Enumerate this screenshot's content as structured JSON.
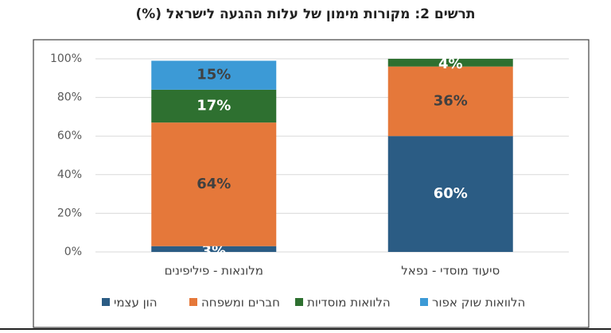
{
  "chart_data": {
    "type": "stacked_bar",
    "title": "תרשים 2: מקורות מימון של עלות ההגעה לישראל (%)",
    "categories": [
      "מלונאות - פיליפינים",
      "סיעוד מוסדי - נפאל"
    ],
    "series": [
      {
        "name": "הון עצמי",
        "color": "#2b5c84",
        "label_color": "#ffffff",
        "values": [
          3,
          60
        ],
        "value_labels": [
          "3%",
          "60%"
        ]
      },
      {
        "name": "חברים ומשפחה",
        "color": "#e5783a",
        "label_color": "#404040",
        "values": [
          64,
          36
        ],
        "value_labels": [
          "64%",
          "36%"
        ]
      },
      {
        "name": "הלוואות מוסדיות",
        "color": "#2e7030",
        "label_color": "#ffffff",
        "values": [
          17,
          4
        ],
        "value_labels": [
          "17%",
          "4%"
        ]
      },
      {
        "name": "הלוואות שוק אפור",
        "color": "#3c9ad6",
        "label_color": "#404040",
        "values": [
          15,
          null
        ],
        "value_labels": [
          "15%",
          null
        ]
      }
    ],
    "ylim": [
      0,
      100
    ],
    "yticks": [
      {
        "value": 0,
        "label": "0%"
      },
      {
        "value": 20,
        "label": "20%"
      },
      {
        "value": 40,
        "label": "40%"
      },
      {
        "value": 60,
        "label": "60%"
      },
      {
        "value": 80,
        "label": "80%"
      },
      {
        "value": 100,
        "label": "100%"
      }
    ],
    "grid": true
  }
}
